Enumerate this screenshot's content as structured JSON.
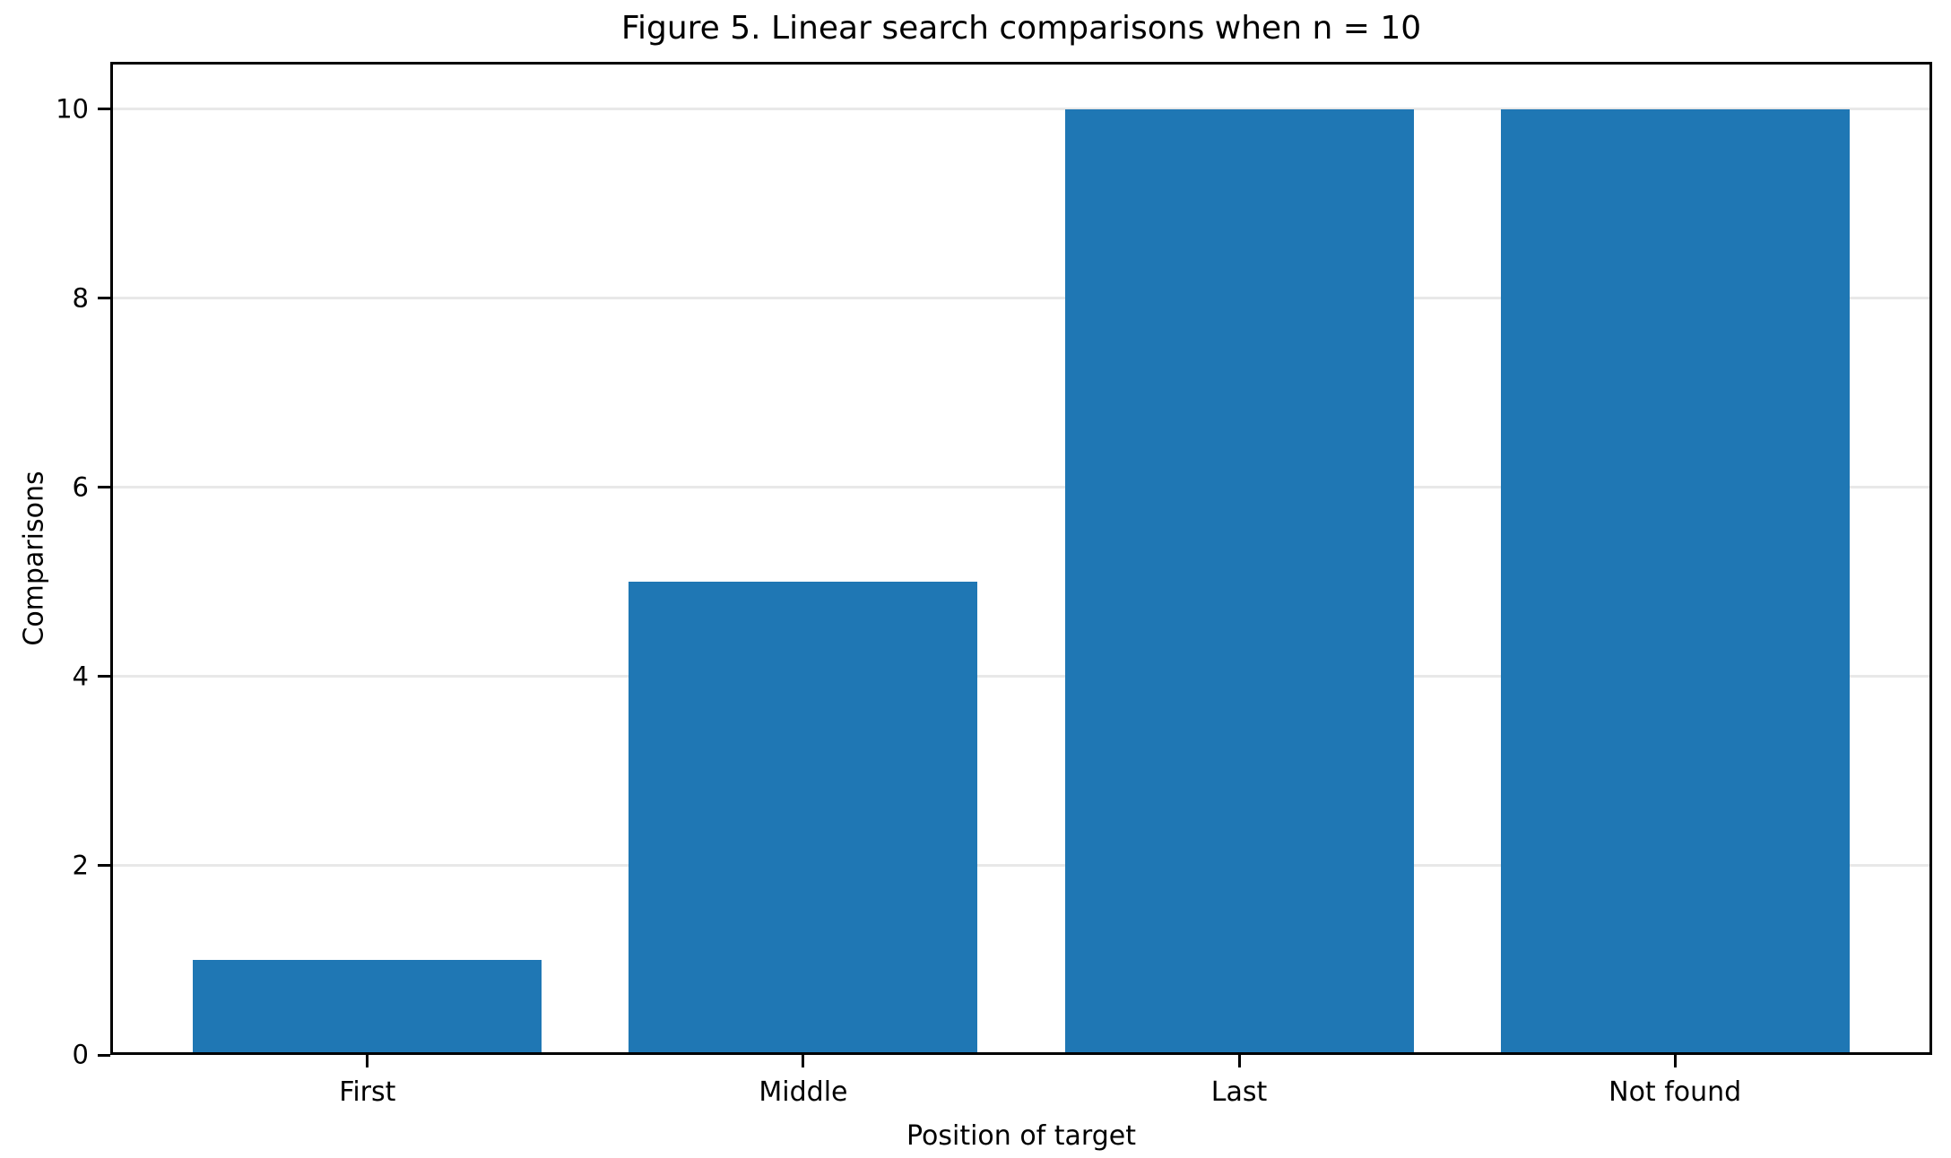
{
  "chart_data": {
    "type": "bar",
    "title": "Figure 5. Linear search comparisons when n = 10",
    "categories": [
      "First",
      "Middle",
      "Last",
      "Not found"
    ],
    "values": [
      1,
      5,
      10,
      10
    ],
    "xlabel": "Position of target",
    "ylabel": "Comparisons",
    "yticks": [
      0,
      2,
      4,
      6,
      8,
      10
    ],
    "ylim": [
      0,
      10.5
    ],
    "xlim": [
      -0.59,
      3.59
    ],
    "bar_width": 0.8,
    "bar_color": "#1f77b4",
    "grid_color": "#e8e8e8",
    "grid": "horizontal",
    "legend_position": "none",
    "background": "#ffffff"
  }
}
